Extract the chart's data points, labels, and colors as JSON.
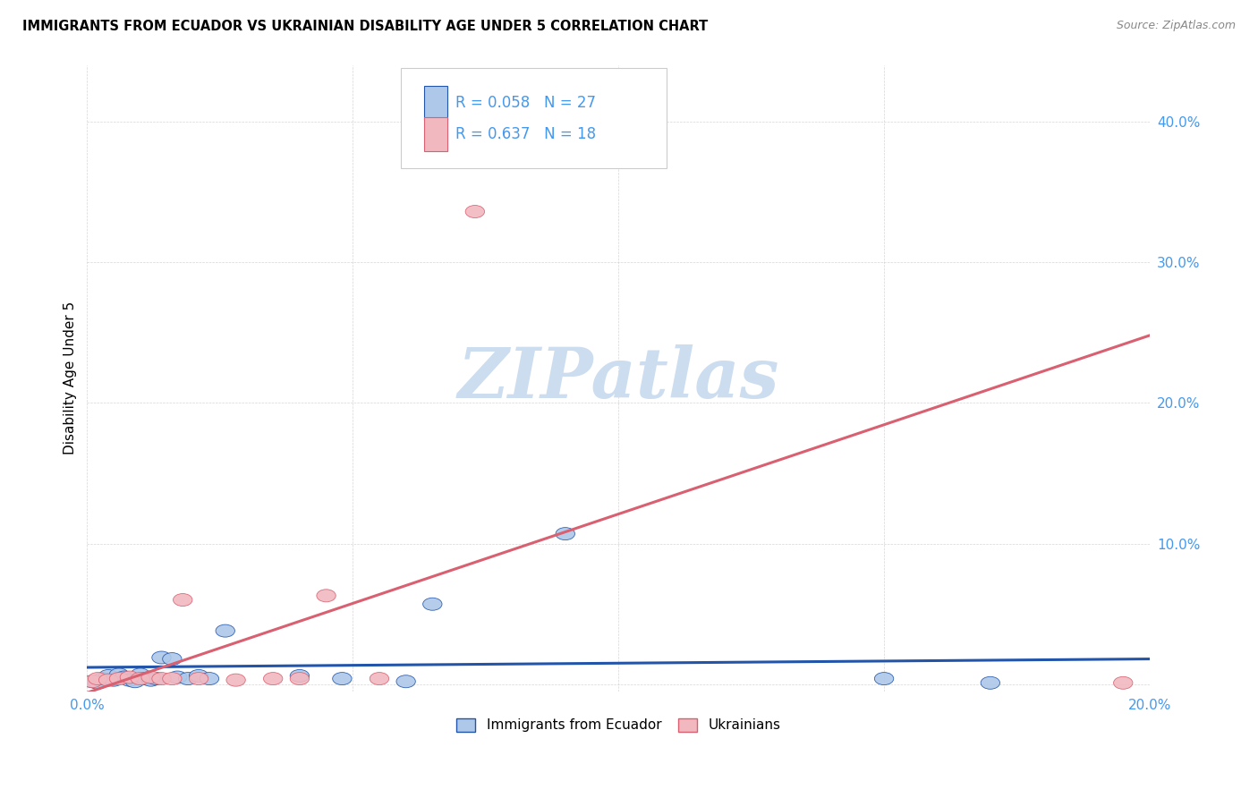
{
  "title": "IMMIGRANTS FROM ECUADOR VS UKRAINIAN DISABILITY AGE UNDER 5 CORRELATION CHART",
  "source": "Source: ZipAtlas.com",
  "ylabel": "Disability Age Under 5",
  "xlim": [
    0.0,
    0.2
  ],
  "ylim": [
    -0.005,
    0.44
  ],
  "yticks": [
    0.0,
    0.1,
    0.2,
    0.3,
    0.4
  ],
  "ytick_labels": [
    "",
    "10.0%",
    "20.0%",
    "30.0%",
    "40.0%"
  ],
  "xticks": [
    0.0,
    0.05,
    0.1,
    0.15,
    0.2
  ],
  "xtick_labels": [
    "0.0%",
    "",
    "",
    "",
    "20.0%"
  ],
  "ecuador_R": 0.058,
  "ecuador_N": 27,
  "ukraine_R": 0.637,
  "ukraine_N": 18,
  "ecuador_color": "#adc8e8",
  "ukraine_color": "#f2b8c0",
  "ecuador_line_color": "#2255aa",
  "ukraine_line_color": "#d96070",
  "tick_color": "#4499ee",
  "background_color": "#ffffff",
  "ecuador_x": [
    0.001,
    0.002,
    0.003,
    0.004,
    0.005,
    0.006,
    0.007,
    0.008,
    0.009,
    0.01,
    0.011,
    0.012,
    0.013,
    0.014,
    0.016,
    0.017,
    0.019,
    0.021,
    0.023,
    0.026,
    0.04,
    0.048,
    0.06,
    0.065,
    0.09,
    0.15,
    0.17
  ],
  "ecuador_y": [
    0.002,
    0.001,
    0.004,
    0.006,
    0.003,
    0.007,
    0.005,
    0.003,
    0.002,
    0.007,
    0.004,
    0.003,
    0.004,
    0.019,
    0.018,
    0.005,
    0.004,
    0.006,
    0.004,
    0.038,
    0.006,
    0.004,
    0.002,
    0.057,
    0.107,
    0.004,
    0.001
  ],
  "ukraine_x": [
    0.001,
    0.002,
    0.004,
    0.006,
    0.008,
    0.01,
    0.012,
    0.014,
    0.016,
    0.018,
    0.021,
    0.028,
    0.035,
    0.04,
    0.045,
    0.055,
    0.073,
    0.195
  ],
  "ukraine_y": [
    0.002,
    0.004,
    0.003,
    0.004,
    0.005,
    0.004,
    0.005,
    0.004,
    0.004,
    0.06,
    0.004,
    0.003,
    0.004,
    0.004,
    0.063,
    0.004,
    0.336,
    0.001
  ],
  "ukraine_line_x0": 0.0,
  "ukraine_line_y0": -0.006,
  "ukraine_line_x1": 0.2,
  "ukraine_line_y1": 0.248,
  "ecuador_line_x0": 0.0,
  "ecuador_line_y0": 0.012,
  "ecuador_line_x1": 0.2,
  "ecuador_line_y1": 0.018
}
